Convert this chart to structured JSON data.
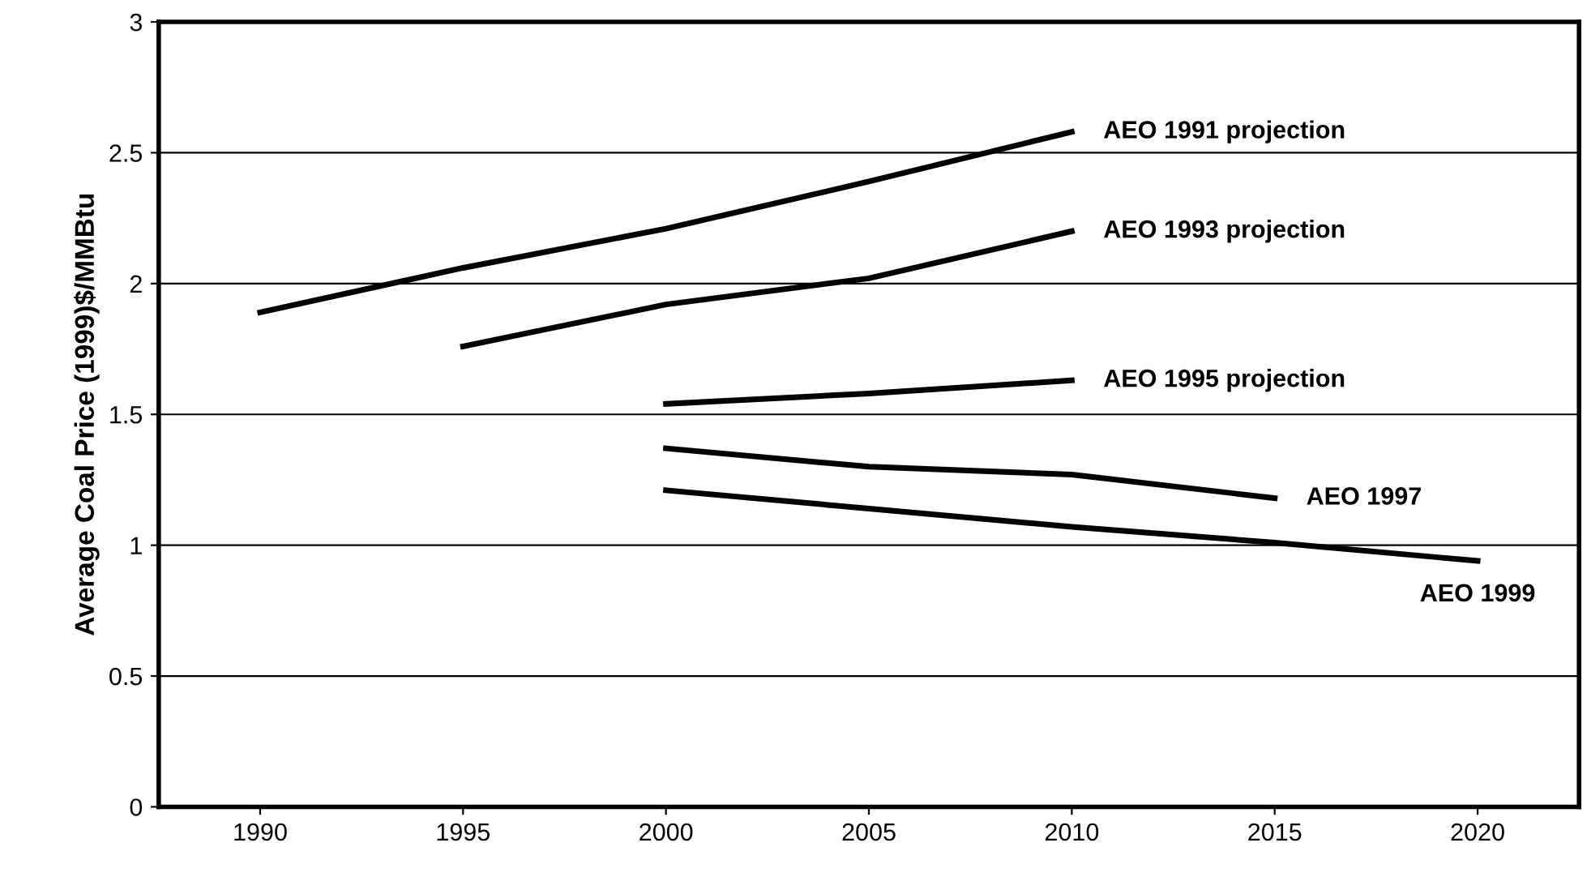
{
  "chart_data": {
    "type": "line",
    "ylabel": "Average Coal Price (1999)$/MMBtu",
    "xlim": [
      1987.5,
      2022.5
    ],
    "xticks": [
      1990,
      1995,
      2000,
      2005,
      2010,
      2015,
      2020
    ],
    "ylim": [
      0,
      3
    ],
    "yticks": [
      0,
      0.5,
      1,
      1.5,
      2,
      2.5,
      3
    ],
    "grid": "y",
    "legend": false,
    "marker": "none",
    "line_style": "solid",
    "series": [
      {
        "name": "AEO 1991 projection",
        "color": "#000000",
        "x": [
          1990,
          1995,
          2000,
          2005,
          2010
        ],
        "values": [
          1.89,
          2.06,
          2.21,
          2.39,
          2.58
        ]
      },
      {
        "name": "AEO 1993 projection",
        "color": "#000000",
        "x": [
          1995,
          2000,
          2005,
          2010
        ],
        "values": [
          1.76,
          1.92,
          2.02,
          2.2
        ]
      },
      {
        "name": "AEO 1995 projection",
        "color": "#000000",
        "x": [
          2000,
          2005,
          2010
        ],
        "values": [
          1.54,
          1.58,
          1.63
        ]
      },
      {
        "name": "AEO 1997",
        "color": "#000000",
        "x": [
          2000,
          2005,
          2010,
          2015
        ],
        "values": [
          1.37,
          1.3,
          1.27,
          1.18
        ]
      },
      {
        "name": "AEO 1999",
        "color": "#000000",
        "x": [
          2000,
          2005,
          2010,
          2015,
          2020
        ],
        "values": [
          1.21,
          1.14,
          1.07,
          1.01,
          0.94
        ]
      }
    ]
  }
}
